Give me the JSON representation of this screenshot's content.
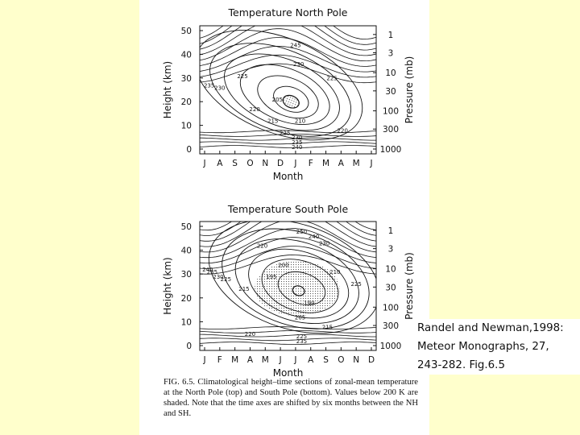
{
  "slide": {
    "background": "#ffffcc"
  },
  "caption": "FIG. 6.5. Climatological height–time sections of zonal-mean temperature at the North Pole (top) and South Pole (bottom). Values below 200 K are shaded. Note that the time axes are shifted by six months between the NH and SH.",
  "citation": {
    "lines": [
      "Randel and Newman,1998:",
      "Meteor Monographs, 27,",
      "243-282. Fig.6.5"
    ]
  },
  "chart_data": [
    {
      "type": "contour",
      "title": "Temperature North Pole",
      "xlabel": "Month",
      "ylabel": "Height (km)",
      "y2label": "Pressure (mb)",
      "x_ticks": [
        "J",
        "A",
        "S",
        "O",
        "N",
        "D",
        "J",
        "F",
        "M",
        "A",
        "M",
        "J"
      ],
      "y_ticks": [
        0,
        10,
        20,
        30,
        40,
        50
      ],
      "y2_ticks": [
        1,
        3,
        10,
        30,
        100,
        300,
        1000
      ],
      "ylim": [
        0,
        50
      ],
      "shaded_below_K": 200,
      "contour_labels": [
        {
          "text": "235",
          "month_index": 0.3,
          "height": 26
        },
        {
          "text": "230",
          "month_index": 1.0,
          "height": 25
        },
        {
          "text": "225",
          "month_index": 2.5,
          "height": 30
        },
        {
          "text": "220",
          "month_index": 3.3,
          "height": 16
        },
        {
          "text": "215",
          "month_index": 4.5,
          "height": 11
        },
        {
          "text": "210",
          "month_index": 6.3,
          "height": 11
        },
        {
          "text": "205",
          "month_index": 4.8,
          "height": 20
        },
        {
          "text": "225",
          "month_index": 8.4,
          "height": 29
        },
        {
          "text": "230",
          "month_index": 6.2,
          "height": 35
        },
        {
          "text": "245",
          "month_index": 6.0,
          "height": 43
        },
        {
          "text": "225",
          "month_index": 5.3,
          "height": 6
        },
        {
          "text": "220",
          "month_index": 9.1,
          "height": 7
        },
        {
          "text": "230",
          "month_index": 6.1,
          "height": 4
        },
        {
          "text": "235",
          "month_index": 6.1,
          "height": 2
        },
        {
          "text": "240",
          "month_index": 6.1,
          "height": 0
        }
      ]
    },
    {
      "type": "contour",
      "title": "Temperature South Pole",
      "xlabel": "Month",
      "ylabel": "Height (km)",
      "y2label": "Pressure (mb)",
      "x_ticks": [
        "J",
        "F",
        "M",
        "A",
        "M",
        "J",
        "J",
        "A",
        "S",
        "O",
        "N",
        "D"
      ],
      "y_ticks": [
        0,
        10,
        20,
        30,
        40,
        50
      ],
      "y2_ticks": [
        1,
        3,
        10,
        30,
        100,
        300,
        1000
      ],
      "ylim": [
        0,
        50
      ],
      "shaded_below_K": 200,
      "contour_labels": [
        {
          "text": "240",
          "month_index": 0.2,
          "height": 31
        },
        {
          "text": "235",
          "month_index": 0.5,
          "height": 30
        },
        {
          "text": "230",
          "month_index": 0.9,
          "height": 28
        },
        {
          "text": "225",
          "month_index": 1.4,
          "height": 27
        },
        {
          "text": "220",
          "month_index": 3.8,
          "height": 41
        },
        {
          "text": "215",
          "month_index": 2.6,
          "height": 23
        },
        {
          "text": "200",
          "month_index": 5.2,
          "height": 33
        },
        {
          "text": "195",
          "month_index": 4.4,
          "height": 28
        },
        {
          "text": "190",
          "month_index": 6.9,
          "height": 17
        },
        {
          "text": "205",
          "month_index": 6.3,
          "height": 11
        },
        {
          "text": "220",
          "month_index": 3.0,
          "height": 4
        },
        {
          "text": "215",
          "month_index": 8.1,
          "height": 7
        },
        {
          "text": "225",
          "month_index": 6.4,
          "height": 3
        },
        {
          "text": "235",
          "month_index": 6.4,
          "height": 1
        },
        {
          "text": "250",
          "month_index": 6.4,
          "height": 47
        },
        {
          "text": "240",
          "month_index": 7.2,
          "height": 45
        },
        {
          "text": "230",
          "month_index": 7.9,
          "height": 42
        },
        {
          "text": "210",
          "month_index": 8.6,
          "height": 30
        },
        {
          "text": "225",
          "month_index": 10.0,
          "height": 25
        }
      ]
    }
  ]
}
